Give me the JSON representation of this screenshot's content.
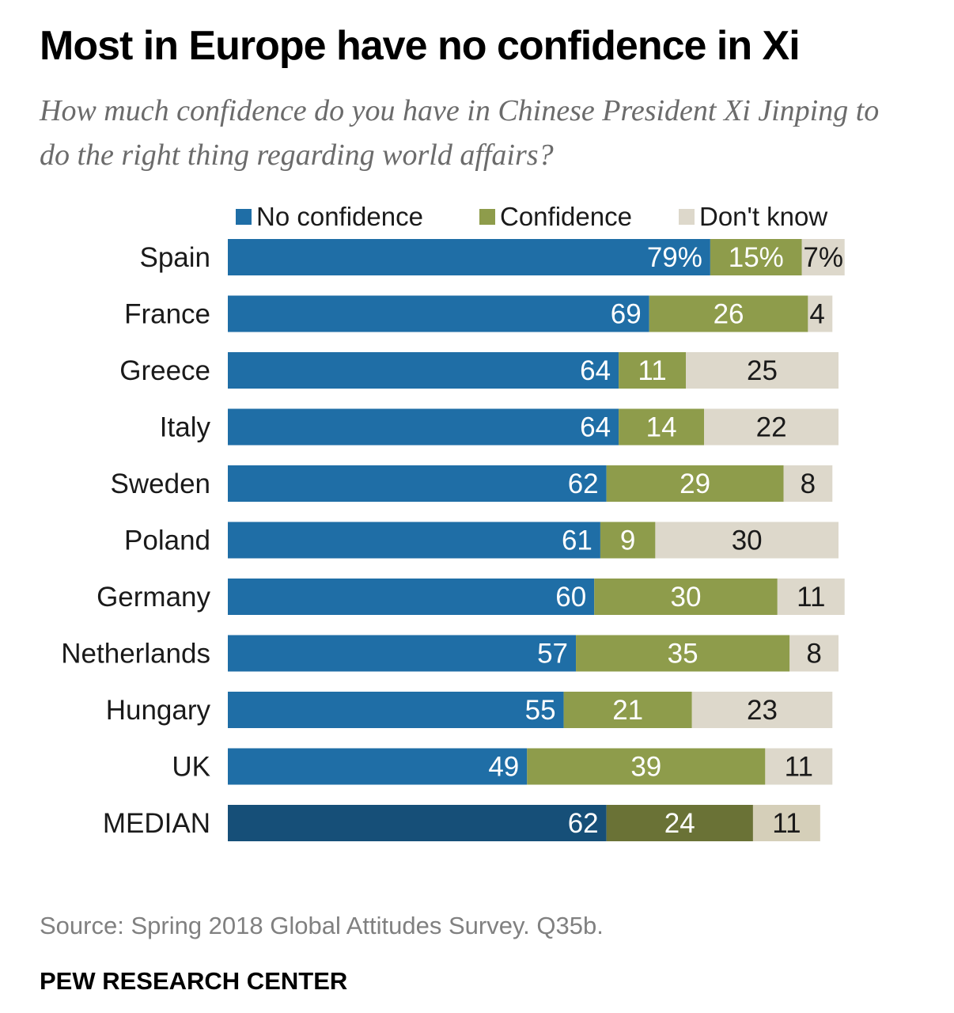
{
  "page": {
    "title": "Most in Europe have no confidence in Xi",
    "subtitle": "How much confidence do you have in Chinese President Xi Jinping to do the right thing regarding world affairs?",
    "source": "Source: Spring 2018 Global Attitudes Survey. Q35b.",
    "org": "PEW RESEARCH CENTER"
  },
  "colors": {
    "no_confidence": "#1f6ea6",
    "confidence": "#8e9c4b",
    "dont_know": "#ddd8cb",
    "median_no_confidence": "#164f78",
    "median_confidence": "#6a7236",
    "median_dont_know": "#d5cfb9"
  },
  "chart_data": {
    "type": "bar",
    "orientation": "horizontal",
    "stacked": true,
    "title": "Most in Europe have no confidence in Xi",
    "subtitle": "How much confidence do you have in Chinese President Xi Jinping to do the right thing regarding world affairs?",
    "legend_position": "top",
    "grid": false,
    "xlim": [
      0,
      100
    ],
    "categories": [
      "Spain",
      "France",
      "Greece",
      "Italy",
      "Sweden",
      "Poland",
      "Germany",
      "Netherlands",
      "Hungary",
      "UK",
      "MEDIAN"
    ],
    "series": [
      {
        "name": "No confidence",
        "values": [
          79,
          69,
          64,
          64,
          62,
          61,
          60,
          57,
          55,
          49,
          62
        ]
      },
      {
        "name": "Confidence",
        "values": [
          15,
          26,
          11,
          14,
          29,
          9,
          30,
          35,
          21,
          39,
          24
        ]
      },
      {
        "name": "Don't know",
        "values": [
          7,
          4,
          25,
          22,
          8,
          30,
          11,
          8,
          23,
          11,
          11
        ]
      }
    ],
    "value_labels": [
      [
        "79%",
        "15%",
        "7%"
      ],
      [
        "69",
        "26",
        "4"
      ],
      [
        "64",
        "11",
        "25"
      ],
      [
        "64",
        "14",
        "22"
      ],
      [
        "62",
        "29",
        "8"
      ],
      [
        "61",
        "9",
        "30"
      ],
      [
        "60",
        "30",
        "11"
      ],
      [
        "57",
        "35",
        "8"
      ],
      [
        "55",
        "21",
        "23"
      ],
      [
        "49",
        "39",
        "11"
      ],
      [
        "62",
        "24",
        "11"
      ]
    ]
  }
}
